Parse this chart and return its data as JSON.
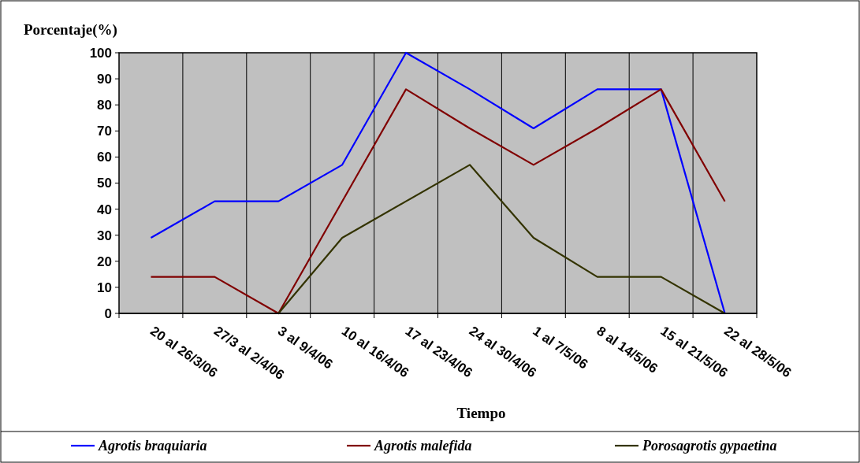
{
  "chart_data": {
    "type": "line",
    "ylabel": "Porcentaje(%)",
    "xlabel": "Tiempo",
    "categories": [
      "20 al 26/3/06",
      "27/3 al 2/4/06",
      "3 al 9/4/06",
      "10 al 16/4/06",
      "17 al 23/4/06",
      "24 al 30/4/06",
      "1 al 7/5/06",
      "8 al 14/5/06",
      "15 al 21/5/06",
      "22 al 28/5/06"
    ],
    "series": [
      {
        "name": "Agrotis braquiaria",
        "color": "#0000ff",
        "values": [
          29,
          43,
          43,
          57,
          100,
          86,
          71,
          86,
          86,
          0
        ]
      },
      {
        "name": "Agrotis malefida",
        "color": "#800000",
        "values": [
          14,
          14,
          0,
          43,
          86,
          71,
          57,
          71,
          86,
          43
        ]
      },
      {
        "name": "Porosagrotis gypaetina",
        "color": "#333300",
        "values": [
          0,
          0,
          0,
          29,
          43,
          57,
          29,
          14,
          14,
          0
        ]
      }
    ],
    "ylim": [
      0,
      100
    ],
    "yticks": [
      0,
      10,
      20,
      30,
      40,
      50,
      60,
      70,
      80,
      90,
      100
    ],
    "grid": "x",
    "legend": "bottom",
    "marker": "none",
    "line_style": "solid"
  }
}
